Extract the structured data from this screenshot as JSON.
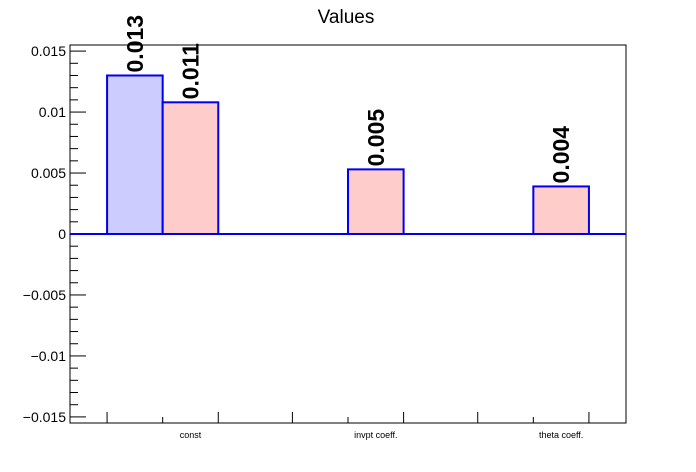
{
  "chart_data": {
    "type": "bar",
    "title": "Values",
    "categories": [
      "const",
      "invpt coeff.",
      "theta coeff."
    ],
    "series": [
      {
        "values": [
          0.013,
          null,
          null
        ],
        "color": "#ccccff",
        "edge_color": "#0000ee"
      },
      {
        "values": [
          0.011,
          0.005,
          0.004
        ],
        "color": "#ffcccc",
        "edge_color": "#0000ee"
      }
    ],
    "bar_values_plotted": [
      [
        0.013,
        null,
        null
      ],
      [
        0.0108,
        0.0053,
        0.0039
      ]
    ],
    "data_labels": [
      [
        "0.013",
        null,
        null
      ],
      [
        "0.011",
        "0.005",
        "0.004"
      ]
    ],
    "ylim": [
      -0.0155,
      0.0155
    ],
    "yticks": [
      -0.015,
      -0.01,
      -0.005,
      0,
      0.005,
      0.01,
      0.015
    ],
    "ytick_labels": [
      "−0.015",
      "−0.01",
      "−0.005",
      "0",
      "0.005",
      "0.01",
      "0.015"
    ],
    "xlabel": "",
    "ylabel": "",
    "grid": false,
    "zero_line_color": "#0000ee"
  }
}
